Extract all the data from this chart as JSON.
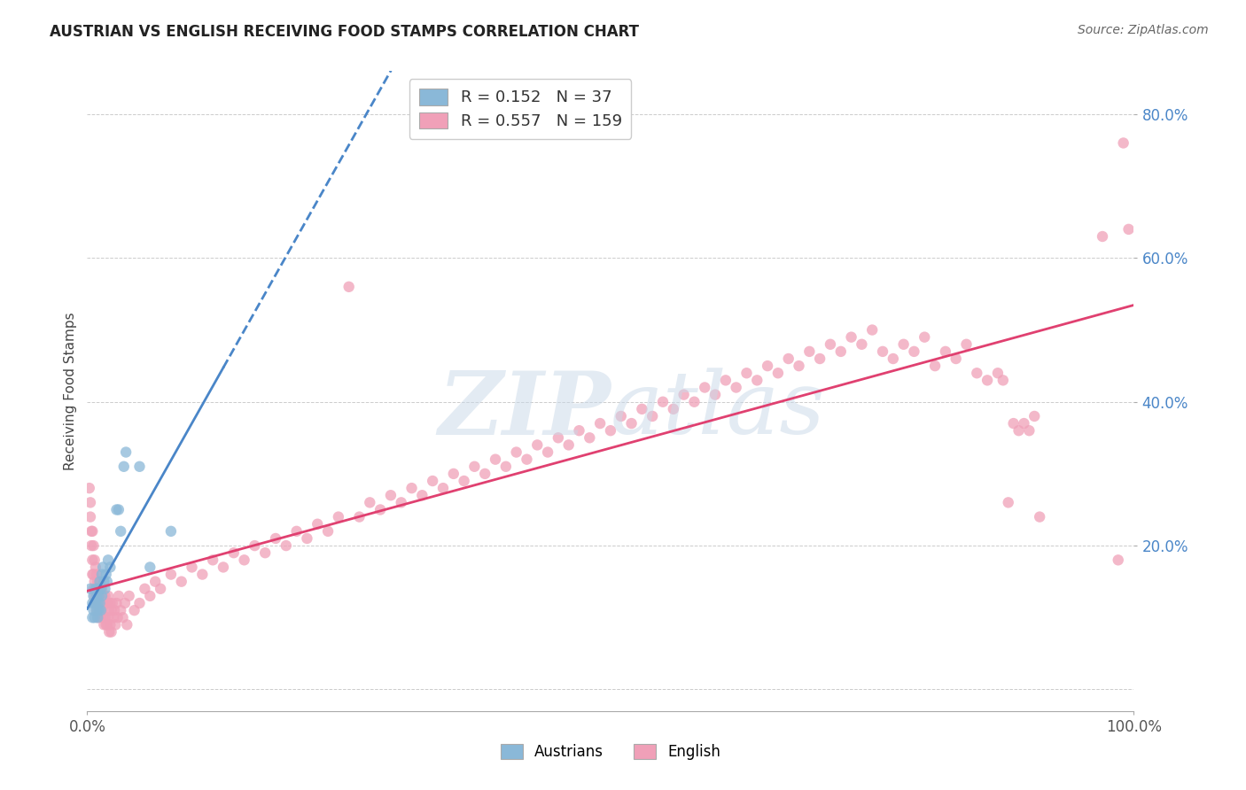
{
  "title": "AUSTRIAN VS ENGLISH RECEIVING FOOD STAMPS CORRELATION CHART",
  "source": "Source: ZipAtlas.com",
  "ylabel": "Receiving Food Stamps",
  "xlabel": "",
  "xlim": [
    0.0,
    1.0
  ],
  "ylim": [
    -0.03,
    0.86
  ],
  "austrian_R": 0.152,
  "austrian_N": 37,
  "english_R": 0.557,
  "english_N": 159,
  "austrian_color": "#8ab8d8",
  "english_color": "#f0a0b8",
  "austrian_line_color": "#4a86c8",
  "english_line_color": "#e04070",
  "background_color": "#ffffff",
  "grid_color": "#cccccc",
  "ytick_color": "#4a86c8",
  "austrian_points": [
    [
      0.003,
      0.14
    ],
    [
      0.005,
      0.12
    ],
    [
      0.005,
      0.1
    ],
    [
      0.006,
      0.13
    ],
    [
      0.006,
      0.11
    ],
    [
      0.007,
      0.12
    ],
    [
      0.007,
      0.1
    ],
    [
      0.008,
      0.14
    ],
    [
      0.008,
      0.12
    ],
    [
      0.009,
      0.11
    ],
    [
      0.009,
      0.13
    ],
    [
      0.01,
      0.14
    ],
    [
      0.01,
      0.12
    ],
    [
      0.01,
      0.1
    ],
    [
      0.011,
      0.13
    ],
    [
      0.011,
      0.11
    ],
    [
      0.012,
      0.15
    ],
    [
      0.012,
      0.12
    ],
    [
      0.013,
      0.14
    ],
    [
      0.013,
      0.11
    ],
    [
      0.014,
      0.16
    ],
    [
      0.014,
      0.13
    ],
    [
      0.015,
      0.17
    ],
    [
      0.016,
      0.15
    ],
    [
      0.017,
      0.14
    ],
    [
      0.018,
      0.16
    ],
    [
      0.019,
      0.15
    ],
    [
      0.02,
      0.18
    ],
    [
      0.022,
      0.17
    ],
    [
      0.028,
      0.25
    ],
    [
      0.03,
      0.25
    ],
    [
      0.032,
      0.22
    ],
    [
      0.035,
      0.31
    ],
    [
      0.037,
      0.33
    ],
    [
      0.05,
      0.31
    ],
    [
      0.06,
      0.17
    ],
    [
      0.08,
      0.22
    ]
  ],
  "english_points": [
    [
      0.002,
      0.28
    ],
    [
      0.003,
      0.26
    ],
    [
      0.003,
      0.24
    ],
    [
      0.004,
      0.22
    ],
    [
      0.004,
      0.2
    ],
    [
      0.005,
      0.22
    ],
    [
      0.005,
      0.18
    ],
    [
      0.005,
      0.16
    ],
    [
      0.006,
      0.2
    ],
    [
      0.006,
      0.16
    ],
    [
      0.006,
      0.14
    ],
    [
      0.007,
      0.18
    ],
    [
      0.007,
      0.15
    ],
    [
      0.007,
      0.13
    ],
    [
      0.008,
      0.17
    ],
    [
      0.008,
      0.14
    ],
    [
      0.008,
      0.12
    ],
    [
      0.009,
      0.16
    ],
    [
      0.009,
      0.13
    ],
    [
      0.009,
      0.11
    ],
    [
      0.01,
      0.15
    ],
    [
      0.01,
      0.13
    ],
    [
      0.01,
      0.1
    ],
    [
      0.011,
      0.14
    ],
    [
      0.011,
      0.12
    ],
    [
      0.012,
      0.15
    ],
    [
      0.012,
      0.11
    ],
    [
      0.013,
      0.13
    ],
    [
      0.013,
      0.1
    ],
    [
      0.014,
      0.14
    ],
    [
      0.014,
      0.11
    ],
    [
      0.015,
      0.13
    ],
    [
      0.015,
      0.1
    ],
    [
      0.016,
      0.12
    ],
    [
      0.016,
      0.09
    ],
    [
      0.017,
      0.13
    ],
    [
      0.017,
      0.1
    ],
    [
      0.018,
      0.12
    ],
    [
      0.018,
      0.09
    ],
    [
      0.019,
      0.12
    ],
    [
      0.019,
      0.09
    ],
    [
      0.02,
      0.13
    ],
    [
      0.02,
      0.1
    ],
    [
      0.021,
      0.11
    ],
    [
      0.021,
      0.08
    ],
    [
      0.022,
      0.12
    ],
    [
      0.022,
      0.09
    ],
    [
      0.023,
      0.11
    ],
    [
      0.023,
      0.08
    ],
    [
      0.024,
      0.12
    ],
    [
      0.025,
      0.1
    ],
    [
      0.026,
      0.11
    ],
    [
      0.027,
      0.09
    ],
    [
      0.028,
      0.12
    ],
    [
      0.029,
      0.1
    ],
    [
      0.03,
      0.13
    ],
    [
      0.032,
      0.11
    ],
    [
      0.034,
      0.1
    ],
    [
      0.036,
      0.12
    ],
    [
      0.038,
      0.09
    ],
    [
      0.04,
      0.13
    ],
    [
      0.045,
      0.11
    ],
    [
      0.05,
      0.12
    ],
    [
      0.055,
      0.14
    ],
    [
      0.06,
      0.13
    ],
    [
      0.065,
      0.15
    ],
    [
      0.07,
      0.14
    ],
    [
      0.08,
      0.16
    ],
    [
      0.09,
      0.15
    ],
    [
      0.1,
      0.17
    ],
    [
      0.11,
      0.16
    ],
    [
      0.12,
      0.18
    ],
    [
      0.13,
      0.17
    ],
    [
      0.14,
      0.19
    ],
    [
      0.15,
      0.18
    ],
    [
      0.16,
      0.2
    ],
    [
      0.17,
      0.19
    ],
    [
      0.18,
      0.21
    ],
    [
      0.19,
      0.2
    ],
    [
      0.2,
      0.22
    ],
    [
      0.21,
      0.21
    ],
    [
      0.22,
      0.23
    ],
    [
      0.23,
      0.22
    ],
    [
      0.24,
      0.24
    ],
    [
      0.25,
      0.56
    ],
    [
      0.26,
      0.24
    ],
    [
      0.27,
      0.26
    ],
    [
      0.28,
      0.25
    ],
    [
      0.29,
      0.27
    ],
    [
      0.3,
      0.26
    ],
    [
      0.31,
      0.28
    ],
    [
      0.32,
      0.27
    ],
    [
      0.33,
      0.29
    ],
    [
      0.34,
      0.28
    ],
    [
      0.35,
      0.3
    ],
    [
      0.36,
      0.29
    ],
    [
      0.37,
      0.31
    ],
    [
      0.38,
      0.3
    ],
    [
      0.39,
      0.32
    ],
    [
      0.4,
      0.31
    ],
    [
      0.41,
      0.33
    ],
    [
      0.42,
      0.32
    ],
    [
      0.43,
      0.34
    ],
    [
      0.44,
      0.33
    ],
    [
      0.45,
      0.35
    ],
    [
      0.46,
      0.34
    ],
    [
      0.47,
      0.36
    ],
    [
      0.48,
      0.35
    ],
    [
      0.49,
      0.37
    ],
    [
      0.5,
      0.36
    ],
    [
      0.51,
      0.38
    ],
    [
      0.52,
      0.37
    ],
    [
      0.53,
      0.39
    ],
    [
      0.54,
      0.38
    ],
    [
      0.55,
      0.4
    ],
    [
      0.56,
      0.39
    ],
    [
      0.57,
      0.41
    ],
    [
      0.58,
      0.4
    ],
    [
      0.59,
      0.42
    ],
    [
      0.6,
      0.41
    ],
    [
      0.61,
      0.43
    ],
    [
      0.62,
      0.42
    ],
    [
      0.63,
      0.44
    ],
    [
      0.64,
      0.43
    ],
    [
      0.65,
      0.45
    ],
    [
      0.66,
      0.44
    ],
    [
      0.67,
      0.46
    ],
    [
      0.68,
      0.45
    ],
    [
      0.69,
      0.47
    ],
    [
      0.7,
      0.46
    ],
    [
      0.71,
      0.48
    ],
    [
      0.72,
      0.47
    ],
    [
      0.73,
      0.49
    ],
    [
      0.74,
      0.48
    ],
    [
      0.75,
      0.5
    ],
    [
      0.76,
      0.47
    ],
    [
      0.77,
      0.46
    ],
    [
      0.78,
      0.48
    ],
    [
      0.79,
      0.47
    ],
    [
      0.8,
      0.49
    ],
    [
      0.81,
      0.45
    ],
    [
      0.82,
      0.47
    ],
    [
      0.83,
      0.46
    ],
    [
      0.84,
      0.48
    ],
    [
      0.85,
      0.44
    ],
    [
      0.86,
      0.43
    ],
    [
      0.87,
      0.44
    ],
    [
      0.875,
      0.43
    ],
    [
      0.88,
      0.26
    ],
    [
      0.885,
      0.37
    ],
    [
      0.89,
      0.36
    ],
    [
      0.895,
      0.37
    ],
    [
      0.9,
      0.36
    ],
    [
      0.905,
      0.38
    ],
    [
      0.91,
      0.24
    ],
    [
      0.97,
      0.63
    ],
    [
      0.985,
      0.18
    ],
    [
      0.99,
      0.76
    ],
    [
      0.995,
      0.64
    ]
  ],
  "xtick_positions": [
    0.0,
    1.0
  ],
  "xtick_labels": [
    "0.0%",
    "100.0%"
  ],
  "ytick_positions": [
    0.2,
    0.4,
    0.6,
    0.8
  ],
  "ytick_labels": [
    "20.0%",
    "40.0%",
    "60.0%",
    "80.0%"
  ],
  "grid_yticks": [
    0.0,
    0.2,
    0.4,
    0.6,
    0.8
  ],
  "legend_R_austrian": "0.152",
  "legend_N_austrian": "37",
  "legend_R_english": "0.557",
  "legend_N_english": "159"
}
